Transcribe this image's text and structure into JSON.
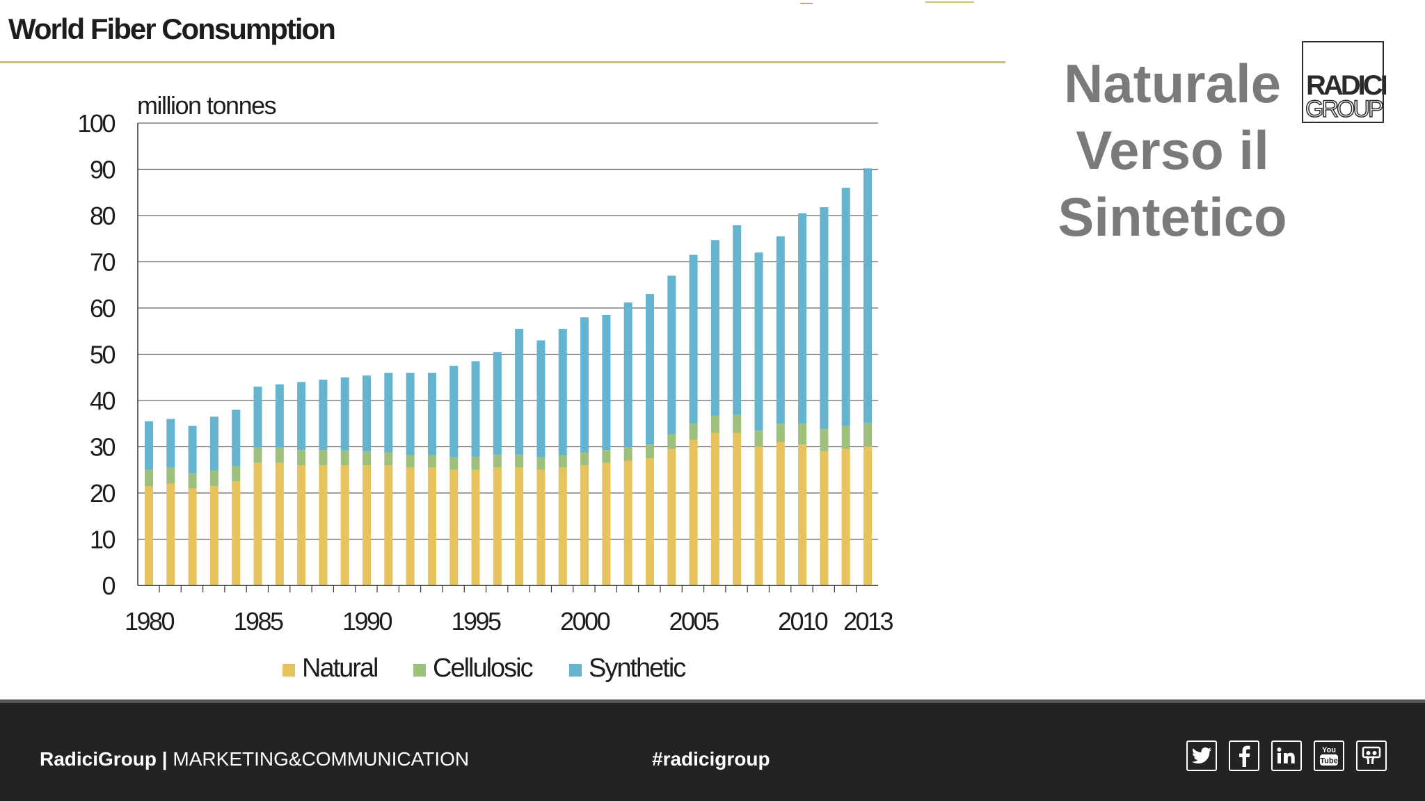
{
  "slide": {
    "title": "World Fiber Consumption",
    "headline": [
      "Naturale",
      "Verso il",
      "Sintetico"
    ],
    "logo": {
      "line1": "RADICI",
      "line2": "GROUP"
    }
  },
  "footer": {
    "brand": "RadiciGroup |",
    "department": " MARKETING&COMMUNICATION",
    "hashtag": "#radicigroup",
    "social_icons": [
      "twitter-icon",
      "facebook-icon",
      "linkedin-icon",
      "youtube-icon",
      "slideshare-icon"
    ]
  },
  "colors": {
    "natural": "#e6c35c",
    "cellulosic": "#9fbf7c",
    "synthetic": "#64b4cf",
    "footer_bg": "#232225",
    "headline": "#7a7a7a"
  },
  "chart_data": {
    "type": "bar",
    "stacked": true,
    "unit_label": "million tonnes",
    "x": [
      1980,
      1981,
      1982,
      1983,
      1984,
      1985,
      1986,
      1987,
      1988,
      1989,
      1990,
      1991,
      1992,
      1993,
      1994,
      1995,
      1996,
      1997,
      1998,
      1999,
      2000,
      2001,
      2002,
      2003,
      2004,
      2005,
      2006,
      2007,
      2008,
      2009,
      2010,
      2011,
      2012,
      2013
    ],
    "x_tick_labels": [
      "1980",
      "1985",
      "1990",
      "1995",
      "2000",
      "2005",
      "2010",
      "2013"
    ],
    "x_tick_values": [
      1980,
      1985,
      1990,
      1995,
      2000,
      2005,
      2010,
      2013
    ],
    "ylim": [
      0,
      100
    ],
    "yticks": [
      0,
      10,
      20,
      30,
      40,
      50,
      60,
      70,
      80,
      90,
      100
    ],
    "series": [
      {
        "name": "Natural",
        "values": [
          21.5,
          22,
          21,
          21.5,
          22.5,
          26.5,
          26.5,
          26,
          26,
          26,
          26,
          26,
          25.5,
          25.5,
          25,
          25,
          25.5,
          25.5,
          25,
          25.5,
          26,
          26.5,
          27,
          27.5,
          29.5,
          31.5,
          33,
          33,
          30,
          31,
          30.5,
          29,
          29.5,
          30
        ]
      },
      {
        "name": "Cellulosic",
        "values": [
          3.5,
          3.5,
          3.3,
          3.3,
          3.3,
          3.3,
          3.3,
          3.3,
          3.3,
          3.2,
          3.0,
          2.8,
          2.7,
          2.7,
          2.7,
          2.8,
          2.8,
          2.8,
          2.7,
          2.7,
          2.8,
          2.8,
          2.9,
          3.0,
          3.2,
          3.5,
          3.7,
          3.9,
          3.5,
          4.0,
          4.5,
          4.8,
          5.0,
          5.2
        ]
      },
      {
        "name": "Synthetic",
        "values": [
          10.5,
          10.5,
          10.2,
          11.7,
          12.2,
          13.2,
          13.7,
          14.7,
          15.2,
          15.8,
          16.4,
          17.2,
          17.8,
          17.8,
          19.8,
          20.7,
          22.2,
          27.2,
          25.3,
          27.3,
          29.2,
          29.2,
          31.3,
          32.5,
          34.3,
          36.5,
          38,
          41,
          38.5,
          40.5,
          45.5,
          48,
          51.5,
          55
        ]
      }
    ],
    "legend_position": "bottom",
    "grid": true
  }
}
